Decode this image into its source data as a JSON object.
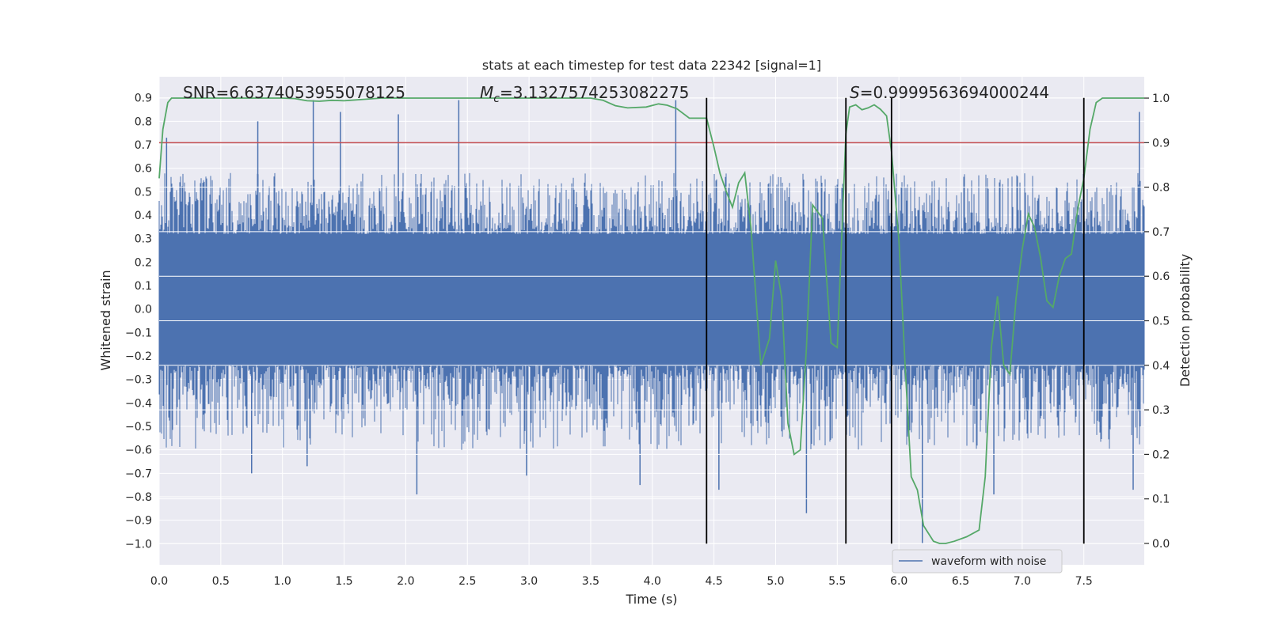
{
  "chart_data": {
    "type": "line",
    "title": "stats at each timestep for test data 22342 [signal=1]",
    "xlabel": "Time (s)",
    "ylabel": "Whitened strain",
    "y2label": "Detection probability",
    "xlim": [
      0.0,
      7.99
    ],
    "ylim": [
      -1.09,
      0.99
    ],
    "y2lim": [
      -0.048,
      1.048
    ],
    "x_ticks": [
      0.0,
      0.5,
      1.0,
      1.5,
      2.0,
      2.5,
      3.0,
      3.5,
      4.0,
      4.5,
      5.0,
      5.5,
      6.0,
      6.5,
      7.0,
      7.5
    ],
    "x_tick_labels": [
      "0.0",
      "0.5",
      "1.0",
      "1.5",
      "2.0",
      "2.5",
      "3.0",
      "3.5",
      "4.0",
      "4.5",
      "5.0",
      "5.5",
      "6.0",
      "6.5",
      "7.0",
      "7.5"
    ],
    "y_ticks": [
      0.9,
      0.8,
      0.7,
      0.6,
      0.5,
      0.4,
      0.3,
      0.2,
      0.1,
      0.0,
      -0.1,
      -0.2,
      -0.3,
      -0.4,
      -0.5,
      -0.6,
      -0.7,
      -0.8,
      -0.9,
      -1.0
    ],
    "y_tick_labels": [
      "0.9",
      "0.8",
      "0.7",
      "0.6",
      "0.5",
      "0.4",
      "0.3",
      "0.2",
      "0.1",
      "0.0",
      "−0.1",
      "−0.2",
      "−0.3",
      "−0.4",
      "−0.5",
      "−0.6",
      "−0.7",
      "−0.8",
      "−0.9",
      "−1.0"
    ],
    "y2_ticks": [
      1.0,
      0.9,
      0.8,
      0.7,
      0.6,
      0.5,
      0.4,
      0.3,
      0.2,
      0.1,
      0.0
    ],
    "y2_tick_labels": [
      "1.0",
      "0.9",
      "0.8",
      "0.7",
      "0.6",
      "0.5",
      "0.4",
      "0.3",
      "0.2",
      "0.1",
      "0.0"
    ],
    "grid": true,
    "annotations": {
      "snr": "SNR=6.6374053955078125",
      "mc_prefix": "M",
      "mc_sub": "c",
      "mc_value": "=3.1327574253082275",
      "s_prefix": "S",
      "s_value": "=0.9999563694000244"
    },
    "legend": {
      "placement": "lower-right",
      "entries": [
        "waveform with noise"
      ]
    },
    "threshold": {
      "axis": "right",
      "value": 0.9,
      "color": "#c44e52"
    },
    "vertical_markers": {
      "x": [
        4.44,
        5.57,
        5.94,
        7.5
      ],
      "ymin": -1.0,
      "ymax": 0.9,
      "color": "#000000"
    },
    "waveform": {
      "name": "waveform with noise",
      "color": "#4c72b0",
      "dense_band": [
        -0.24,
        0.32
      ],
      "outer_band": [
        -0.52,
        0.52
      ],
      "peaks": [
        {
          "x": 0.06,
          "y": 0.73
        },
        {
          "x": 0.8,
          "y": 0.8
        },
        {
          "x": 1.25,
          "y": 0.89
        },
        {
          "x": 1.47,
          "y": 0.84
        },
        {
          "x": 1.94,
          "y": 0.83
        },
        {
          "x": 2.43,
          "y": 0.89
        },
        {
          "x": 4.19,
          "y": 0.89
        },
        {
          "x": 7.95,
          "y": 0.84
        }
      ],
      "troughs": [
        {
          "x": 0.75,
          "y": -0.7
        },
        {
          "x": 1.2,
          "y": -0.67
        },
        {
          "x": 2.09,
          "y": -0.79
        },
        {
          "x": 2.98,
          "y": -0.71
        },
        {
          "x": 3.9,
          "y": -0.75
        },
        {
          "x": 4.54,
          "y": -0.77
        },
        {
          "x": 5.25,
          "y": -0.87
        },
        {
          "x": 6.19,
          "y": -1.0
        },
        {
          "x": 6.77,
          "y": -0.79
        },
        {
          "x": 7.9,
          "y": -0.77
        }
      ]
    },
    "probability": {
      "color": "#55a868",
      "x": [
        0.0,
        0.03,
        0.07,
        0.1,
        0.15,
        0.2,
        0.5,
        1.0,
        1.1,
        1.2,
        1.3,
        1.4,
        1.5,
        1.8,
        2.0,
        2.5,
        3.0,
        3.5,
        3.6,
        3.7,
        3.8,
        3.95,
        4.05,
        4.12,
        4.2,
        4.3,
        4.44,
        4.5,
        4.55,
        4.6,
        4.65,
        4.7,
        4.75,
        4.8,
        4.88,
        4.95,
        5.0,
        5.05,
        5.1,
        5.15,
        5.2,
        5.25,
        5.3,
        5.38,
        5.45,
        5.5,
        5.57,
        5.6,
        5.65,
        5.7,
        5.75,
        5.8,
        5.85,
        5.9,
        5.94,
        6.0,
        6.05,
        6.1,
        6.15,
        6.2,
        6.28,
        6.33,
        6.38,
        6.45,
        6.55,
        6.65,
        6.7,
        6.75,
        6.8,
        6.85,
        6.9,
        6.95,
        7.0,
        7.05,
        7.1,
        7.15,
        7.2,
        7.25,
        7.3,
        7.35,
        7.4,
        7.45,
        7.5,
        7.55,
        7.6,
        7.65,
        7.7,
        7.8,
        7.9,
        7.99
      ],
      "y": [
        0.82,
        0.93,
        0.99,
        1.0,
        1.0,
        1.0,
        1.0,
        1.0,
        0.999,
        0.994,
        0.993,
        0.995,
        0.994,
        1.0,
        1.0,
        1.0,
        1.0,
        1.0,
        0.995,
        0.983,
        0.978,
        0.98,
        0.987,
        0.984,
        0.976,
        0.955,
        0.955,
        0.89,
        0.83,
        0.79,
        0.755,
        0.81,
        0.832,
        0.71,
        0.4,
        0.46,
        0.635,
        0.55,
        0.27,
        0.2,
        0.21,
        0.44,
        0.76,
        0.73,
        0.45,
        0.44,
        0.92,
        0.98,
        0.985,
        0.974,
        0.978,
        0.985,
        0.975,
        0.96,
        0.88,
        0.68,
        0.4,
        0.15,
        0.12,
        0.04,
        0.005,
        0.0,
        0.0,
        0.005,
        0.015,
        0.03,
        0.15,
        0.44,
        0.555,
        0.4,
        0.38,
        0.55,
        0.66,
        0.74,
        0.71,
        0.64,
        0.545,
        0.53,
        0.6,
        0.64,
        0.65,
        0.75,
        0.82,
        0.93,
        0.99,
        1.0,
        1.0,
        1.0,
        1.0,
        1.0
      ]
    }
  }
}
